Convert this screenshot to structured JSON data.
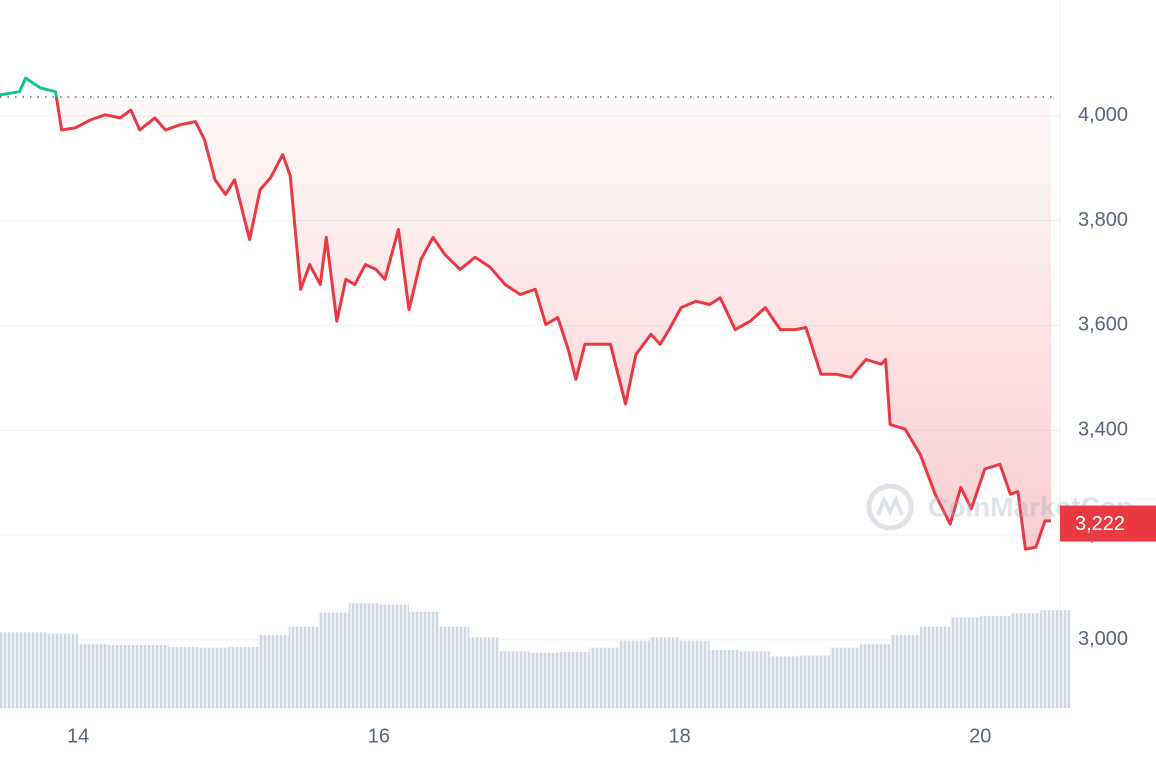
{
  "chart_data": {
    "type": "line",
    "xlim": [
      13.48,
      20.53
    ],
    "xticks": [
      14,
      16,
      18,
      20
    ],
    "ylim": [
      2870,
      4221
    ],
    "yticks": [
      {
        "value": 3000,
        "label": "3,000"
      },
      {
        "value": 3200,
        "label": "3,200"
      },
      {
        "value": 3400,
        "label": "3,400"
      },
      {
        "value": 3600,
        "label": "3,600"
      },
      {
        "value": 3800,
        "label": "3,800"
      },
      {
        "value": 4000,
        "label": "4,000"
      }
    ],
    "grid": true,
    "baseline": 4036,
    "color_up": "#16c784",
    "color_down": "#ea3943",
    "price": {
      "x": [
        13.48,
        13.61,
        13.65,
        13.75,
        13.85,
        13.89,
        13.98,
        14.08,
        14.18,
        14.28,
        14.35,
        14.41,
        14.51,
        14.58,
        14.68,
        14.78,
        14.84,
        14.91,
        14.98,
        15.04,
        15.14,
        15.21,
        15.28,
        15.36,
        15.41,
        15.48,
        15.54,
        15.61,
        15.65,
        15.72,
        15.78,
        15.84,
        15.91,
        15.98,
        16.04,
        16.13,
        16.2,
        16.28,
        16.36,
        16.44,
        16.54,
        16.64,
        16.74,
        16.84,
        16.94,
        17.04,
        17.11,
        17.19,
        17.26,
        17.31,
        17.37,
        17.44,
        17.54,
        17.64,
        17.71,
        17.81,
        17.87,
        17.93,
        18.01,
        18.11,
        18.2,
        18.27,
        18.37,
        18.47,
        18.57,
        18.67,
        18.77,
        18.84,
        18.94,
        19.04,
        19.14,
        19.24,
        19.34,
        19.37,
        19.4,
        19.5,
        19.6,
        19.7,
        19.8,
        19.87,
        19.94,
        20.03,
        20.13,
        20.2,
        20.25,
        20.3,
        20.37,
        20.43,
        20.47
      ],
      "values": [
        4040,
        4046,
        4072,
        4053,
        4046,
        3973,
        3977,
        3992,
        4002,
        3996,
        4011,
        3973,
        3996,
        3973,
        3983,
        3989,
        3954,
        3878,
        3850,
        3878,
        3764,
        3859,
        3882,
        3926,
        3886,
        3669,
        3716,
        3678,
        3768,
        3608,
        3688,
        3678,
        3716,
        3707,
        3688,
        3783,
        3630,
        3726,
        3768,
        3735,
        3707,
        3730,
        3711,
        3678,
        3659,
        3669,
        3602,
        3615,
        3554,
        3497,
        3564,
        3564,
        3564,
        3450,
        3545,
        3583,
        3564,
        3592,
        3634,
        3646,
        3640,
        3653,
        3592,
        3608,
        3634,
        3592,
        3592,
        3596,
        3507,
        3507,
        3501,
        3535,
        3526,
        3535,
        3411,
        3402,
        3354,
        3278,
        3221,
        3291,
        3250,
        3326,
        3335,
        3278,
        3283,
        3173,
        3177,
        3227,
        3227
      ]
    },
    "last_price": {
      "value": 3222,
      "label": "3,222"
    },
    "volume": {
      "color": "#cfd6e4",
      "ylim": [
        0,
        100
      ],
      "x": [
        13.5,
        13.7,
        13.9,
        14.1,
        14.3,
        14.5,
        14.7,
        14.9,
        15.1,
        15.3,
        15.5,
        15.7,
        15.9,
        16.1,
        16.3,
        16.5,
        16.7,
        16.9,
        17.1,
        17.3,
        17.5,
        17.7,
        17.9,
        18.1,
        18.3,
        18.5,
        18.7,
        18.9,
        19.1,
        19.3,
        19.5,
        19.7,
        19.9,
        20.1,
        20.3,
        20.5
      ],
      "values": [
        10.7,
        10.7,
        10.5,
        9.0,
        8.9,
        8.9,
        8.6,
        8.5,
        8.6,
        10.3,
        11.5,
        13.5,
        14.8,
        14.6,
        13.6,
        11.5,
        10.0,
        8.0,
        7.8,
        7.9,
        8.5,
        9.5,
        10.0,
        9.5,
        8.2,
        8.0,
        7.3,
        7.4,
        8.5,
        9.0,
        10.3,
        11.5,
        12.8,
        13.0,
        13.4,
        13.8
      ]
    },
    "watermark": "CoinMarketCap"
  }
}
